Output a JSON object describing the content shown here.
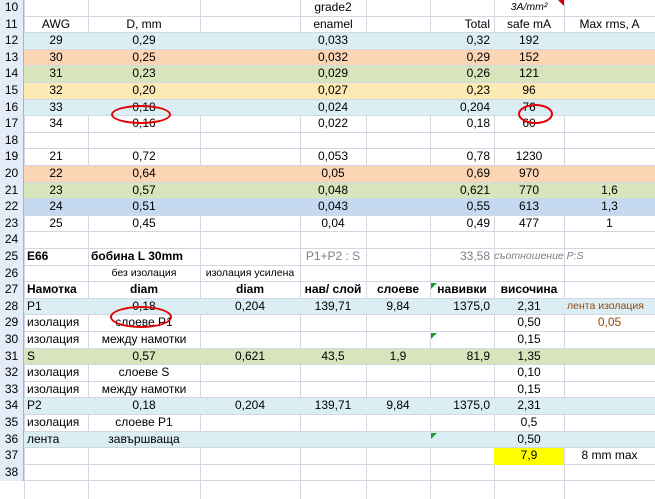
{
  "rows": [
    {
      "n": "10",
      "fill": "",
      "cells": [
        {
          "c": "E",
          "t": "grade2"
        },
        {
          "c": "G",
          "t": "3A/mm²",
          "cls": "i small"
        }
      ]
    },
    {
      "n": "11",
      "fill": "",
      "cells": [
        {
          "c": "A",
          "t": "AWG"
        },
        {
          "c": "B",
          "t": "D, mm"
        },
        {
          "c": "E",
          "t": "enamel"
        },
        {
          "c": "F",
          "t": "Total",
          "align": "r"
        },
        {
          "c": "G",
          "t": "safe mA"
        },
        {
          "c": "H",
          "t": "Max rms, A"
        }
      ]
    },
    {
      "n": "12",
      "fill": "#dbeef3",
      "cells": [
        {
          "c": "A",
          "t": "29"
        },
        {
          "c": "B",
          "t": "0,29"
        },
        {
          "c": "E",
          "t": "0,033"
        },
        {
          "c": "F",
          "t": "0,32",
          "align": "r"
        },
        {
          "c": "G",
          "t": "192"
        }
      ]
    },
    {
      "n": "13",
      "fill": "#fcd5b4",
      "cells": [
        {
          "c": "A",
          "t": "30"
        },
        {
          "c": "B",
          "t": "0,25"
        },
        {
          "c": "E",
          "t": "0,032"
        },
        {
          "c": "F",
          "t": "0,29",
          "align": "r"
        },
        {
          "c": "G",
          "t": "152"
        }
      ]
    },
    {
      "n": "14",
      "fill": "#d8e4bc",
      "cells": [
        {
          "c": "A",
          "t": "31"
        },
        {
          "c": "B",
          "t": "0,23"
        },
        {
          "c": "E",
          "t": "0,029"
        },
        {
          "c": "F",
          "t": "0,26",
          "align": "r"
        },
        {
          "c": "G",
          "t": "121"
        }
      ]
    },
    {
      "n": "15",
      "fill": "#fce9b4",
      "cells": [
        {
          "c": "A",
          "t": "32"
        },
        {
          "c": "B",
          "t": "0,20"
        },
        {
          "c": "E",
          "t": "0,027"
        },
        {
          "c": "F",
          "t": "0,23",
          "align": "r"
        },
        {
          "c": "G",
          "t": "96"
        }
      ]
    },
    {
      "n": "16",
      "fill": "#dbeef3",
      "cells": [
        {
          "c": "A",
          "t": "33"
        },
        {
          "c": "B",
          "t": "0,18"
        },
        {
          "c": "E",
          "t": "0,024"
        },
        {
          "c": "F",
          "t": "0,204",
          "align": "r"
        },
        {
          "c": "G",
          "t": "76"
        }
      ]
    },
    {
      "n": "17",
      "fill": "",
      "cells": [
        {
          "c": "A",
          "t": "34"
        },
        {
          "c": "B",
          "t": "0,16"
        },
        {
          "c": "E",
          "t": "0,022"
        },
        {
          "c": "F",
          "t": "0,18",
          "align": "r"
        },
        {
          "c": "G",
          "t": "60"
        }
      ]
    },
    {
      "n": "18",
      "fill": "",
      "cells": []
    },
    {
      "n": "19",
      "fill": "",
      "cells": [
        {
          "c": "A",
          "t": "21"
        },
        {
          "c": "B",
          "t": "0,72"
        },
        {
          "c": "E",
          "t": "0,053"
        },
        {
          "c": "F",
          "t": "0,78",
          "align": "r"
        },
        {
          "c": "G",
          "t": "1230"
        }
      ]
    },
    {
      "n": "20",
      "fill": "#fcd5b4",
      "cells": [
        {
          "c": "A",
          "t": "22"
        },
        {
          "c": "B",
          "t": "0,64"
        },
        {
          "c": "E",
          "t": "0,05"
        },
        {
          "c": "F",
          "t": "0,69",
          "align": "r"
        },
        {
          "c": "G",
          "t": "970"
        }
      ]
    },
    {
      "n": "21",
      "fill": "#d8e4bc",
      "cells": [
        {
          "c": "A",
          "t": "23"
        },
        {
          "c": "B",
          "t": "0,57"
        },
        {
          "c": "E",
          "t": "0,048"
        },
        {
          "c": "F",
          "t": "0,621",
          "align": "r"
        },
        {
          "c": "G",
          "t": "770"
        },
        {
          "c": "H",
          "t": "1,6"
        }
      ]
    },
    {
      "n": "22",
      "fill": "#c5d9f1",
      "cells": [
        {
          "c": "A",
          "t": "24"
        },
        {
          "c": "B",
          "t": "0,51"
        },
        {
          "c": "E",
          "t": "0,043"
        },
        {
          "c": "F",
          "t": "0,55",
          "align": "r"
        },
        {
          "c": "G",
          "t": "613"
        },
        {
          "c": "H",
          "t": "1,3"
        }
      ]
    },
    {
      "n": "23",
      "fill": "",
      "cells": [
        {
          "c": "A",
          "t": "25"
        },
        {
          "c": "B",
          "t": "0,45"
        },
        {
          "c": "E",
          "t": "0,04"
        },
        {
          "c": "F",
          "t": "0,49",
          "align": "r"
        },
        {
          "c": "G",
          "t": "477"
        },
        {
          "c": "H",
          "t": "1"
        }
      ]
    },
    {
      "n": "24",
      "fill": "",
      "cells": []
    },
    {
      "n": "25",
      "fill": "",
      "cells": [
        {
          "c": "A",
          "t": "E66",
          "align": "l",
          "cls": "b"
        },
        {
          "c": "B",
          "t": "бобина L 30mm",
          "align": "l",
          "cls": "b"
        },
        {
          "c": "E",
          "t": "P1+P2 : S",
          "cls": "gray"
        },
        {
          "c": "F",
          "t": "33,58",
          "align": "r",
          "cls": "gray"
        },
        {
          "c": "G",
          "t": "съотношение P:S",
          "cls": "i small gray"
        }
      ]
    },
    {
      "n": "26",
      "fill": "",
      "cells": [
        {
          "c": "B",
          "t": "без изолация",
          "cls": "small"
        },
        {
          "c": "D",
          "t": "изолация усилена",
          "cls": "small"
        }
      ]
    },
    {
      "n": "27",
      "fill": "",
      "cells": [
        {
          "c": "A",
          "t": "Намотка",
          "align": "l",
          "cls": "b"
        },
        {
          "c": "B",
          "t": "diam",
          "cls": "b"
        },
        {
          "c": "D",
          "t": "diam",
          "cls": "b"
        },
        {
          "c": "E",
          "t": "нав/ слой",
          "cls": "b"
        },
        {
          "c": "EF",
          "t": "слоеве",
          "cls": "b"
        },
        {
          "c": "F",
          "t": "навивки",
          "cls": "b"
        },
        {
          "c": "G",
          "t": "височина",
          "cls": "b"
        }
      ]
    },
    {
      "n": "28",
      "fill": "#dbeef3",
      "cells": [
        {
          "c": "A",
          "t": "P1",
          "align": "l"
        },
        {
          "c": "B",
          "t": "0,18"
        },
        {
          "c": "D",
          "t": "0,204"
        },
        {
          "c": "E",
          "t": "139,71"
        },
        {
          "c": "EF",
          "t": "9,84"
        },
        {
          "c": "F",
          "t": "1375,0",
          "align": "r"
        },
        {
          "c": "G",
          "t": "2,31"
        },
        {
          "c": "H",
          "t": "лента изолация",
          "cls": "brown small",
          "align": "l"
        }
      ]
    },
    {
      "n": "29",
      "fill": "",
      "cells": [
        {
          "c": "A",
          "t": "изолация",
          "align": "l"
        },
        {
          "c": "B",
          "t": "слоеве P1"
        },
        {
          "c": "G",
          "t": "0,50"
        },
        {
          "c": "H",
          "t": "0,05",
          "cls": "brown"
        }
      ]
    },
    {
      "n": "30",
      "fill": "",
      "cells": [
        {
          "c": "A",
          "t": "изолация",
          "align": "l"
        },
        {
          "c": "B",
          "t": "между намотки"
        },
        {
          "c": "G",
          "t": "0,15"
        }
      ]
    },
    {
      "n": "31",
      "fill": "#d8e4bc",
      "cells": [
        {
          "c": "A",
          "t": "S",
          "align": "l"
        },
        {
          "c": "B",
          "t": "0,57"
        },
        {
          "c": "D",
          "t": "0,621"
        },
        {
          "c": "E",
          "t": "43,5"
        },
        {
          "c": "EF",
          "t": "1,9"
        },
        {
          "c": "F",
          "t": "81,9",
          "align": "r"
        },
        {
          "c": "G",
          "t": "1,35"
        }
      ]
    },
    {
      "n": "32",
      "fill": "",
      "cells": [
        {
          "c": "A",
          "t": "изолация",
          "align": "l"
        },
        {
          "c": "B",
          "t": "слоеве S"
        },
        {
          "c": "G",
          "t": "0,10"
        }
      ]
    },
    {
      "n": "33",
      "fill": "",
      "cells": [
        {
          "c": "A",
          "t": "изолация",
          "align": "l"
        },
        {
          "c": "B",
          "t": "между намотки"
        },
        {
          "c": "G",
          "t": "0,15"
        }
      ]
    },
    {
      "n": "34",
      "fill": "#dbeef3",
      "cells": [
        {
          "c": "A",
          "t": "P2",
          "align": "l"
        },
        {
          "c": "B",
          "t": "0,18"
        },
        {
          "c": "D",
          "t": "0,204"
        },
        {
          "c": "E",
          "t": "139,71"
        },
        {
          "c": "EF",
          "t": "9,84"
        },
        {
          "c": "F",
          "t": "1375,0",
          "align": "r"
        },
        {
          "c": "G",
          "t": "2,31"
        }
      ]
    },
    {
      "n": "35",
      "fill": "",
      "cells": [
        {
          "c": "A",
          "t": "изолация",
          "align": "l"
        },
        {
          "c": "B",
          "t": "слоеве P1"
        },
        {
          "c": "G",
          "t": "0,5"
        }
      ]
    },
    {
      "n": "36",
      "fill": "#dbeef3",
      "cells": [
        {
          "c": "A",
          "t": "лента",
          "align": "l"
        },
        {
          "c": "B",
          "t": "завършваща"
        },
        {
          "c": "G",
          "t": "0,50"
        }
      ]
    },
    {
      "n": "37",
      "fill": "",
      "cells": [
        {
          "c": "G",
          "t": "7,9",
          "fill": "#ffff00"
        },
        {
          "c": "H",
          "t": "8 mm max"
        }
      ]
    },
    {
      "n": "38",
      "fill": "",
      "cells": []
    }
  ],
  "colors": {
    "header_bg": "#e4ecf7",
    "grid": "#d0d7e5",
    "annotation": "#e00000",
    "highlight": "#ffff00"
  }
}
